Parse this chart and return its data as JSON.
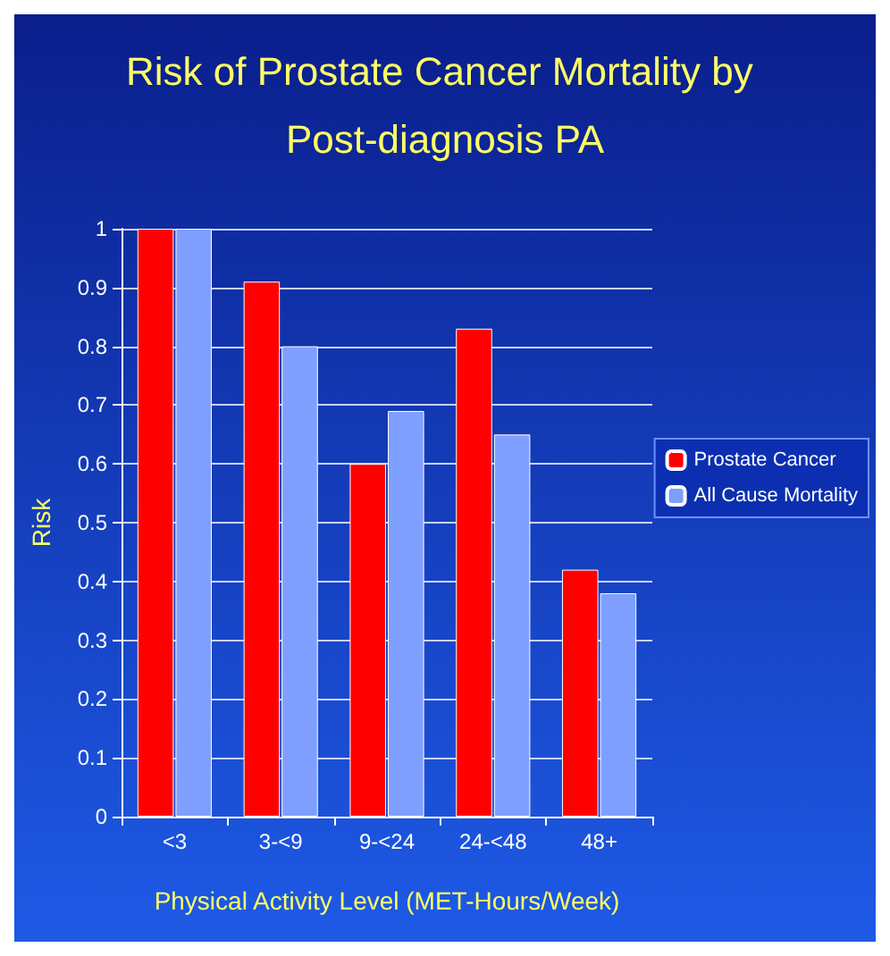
{
  "chart_data": {
    "type": "bar",
    "title": "Risk of Prostate Cancer Mortality by Post-diagnosis PA",
    "xlabel": "Physical Activity Level (MET-Hours/Week)",
    "ylabel": "Risk",
    "categories": [
      "<3",
      "3-<9",
      "9-<24",
      "24-<48",
      "48+"
    ],
    "series": [
      {
        "name": "Prostate Cancer",
        "color": "#ff0000",
        "values": [
          1,
          0.91,
          0.6,
          0.83,
          0.42
        ]
      },
      {
        "name": "All Cause Mortality",
        "color": "#7f9fff",
        "values": [
          1,
          0.8,
          0.69,
          0.65,
          0.38
        ]
      }
    ],
    "ylim": [
      0,
      1
    ],
    "yticks": [
      0,
      0.1,
      0.2,
      0.3,
      0.4,
      0.5,
      0.6,
      0.7,
      0.8,
      0.9,
      1
    ],
    "grid": "y",
    "legend": "right"
  }
}
